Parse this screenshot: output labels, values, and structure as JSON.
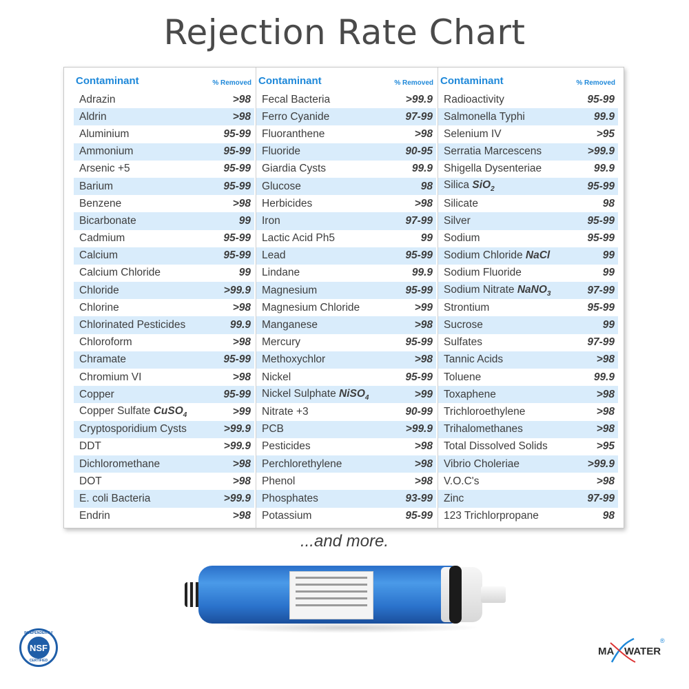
{
  "title": "Rejection Rate Chart",
  "header": {
    "contaminant": "Contaminant",
    "removed": "% Removed"
  },
  "columns": [
    [
      {
        "name": "Adrazin",
        "value": ">98"
      },
      {
        "name": "Aldrin",
        "value": ">98"
      },
      {
        "name": "Aluminium",
        "value": "95-99"
      },
      {
        "name": "Ammonium",
        "value": "95-99"
      },
      {
        "name": "Arsenic +5",
        "value": "95-99"
      },
      {
        "name": "Barium",
        "value": "95-99"
      },
      {
        "name": "Benzene",
        "value": ">98"
      },
      {
        "name": "Bicarbonate",
        "value": "99"
      },
      {
        "name": "Cadmium",
        "value": "95-99"
      },
      {
        "name": "Calcium",
        "value": "95-99"
      },
      {
        "name": "Calcium Chloride",
        "value": "99"
      },
      {
        "name": "Chloride",
        "value": ">99.9"
      },
      {
        "name": "Chlorine",
        "value": ">98"
      },
      {
        "name": "Chlorinated Pesticides",
        "value": "99.9"
      },
      {
        "name": "Chloroform",
        "value": ">98"
      },
      {
        "name": "Chramate",
        "value": "95-99"
      },
      {
        "name": "Chromium VI",
        "value": ">98"
      },
      {
        "name": "Copper",
        "value": "95-99"
      },
      {
        "name": "Copper Sulfate",
        "formula": "CuSO",
        "sub": "4",
        "value": ">99"
      },
      {
        "name": "Cryptosporidium Cysts",
        "value": ">99.9"
      },
      {
        "name": "DDT",
        "value": ">99.9"
      },
      {
        "name": "Dichloromethane",
        "value": ">98"
      },
      {
        "name": "DOT",
        "value": ">98"
      },
      {
        "name": "E. coli Bacteria",
        "value": ">99.9"
      },
      {
        "name": "Endrin",
        "value": ">98"
      }
    ],
    [
      {
        "name": "Fecal Bacteria",
        "value": ">99.9"
      },
      {
        "name": "Ferro Cyanide",
        "value": "97-99"
      },
      {
        "name": "Fluoranthene",
        "value": ">98"
      },
      {
        "name": "Fluoride",
        "value": "90-95"
      },
      {
        "name": "Giardia Cysts",
        "value": "99.9"
      },
      {
        "name": "Glucose",
        "value": "98"
      },
      {
        "name": "Herbicides",
        "value": ">98"
      },
      {
        "name": "Iron",
        "value": "97-99"
      },
      {
        "name": "Lactic Acid Ph5",
        "value": "99"
      },
      {
        "name": "Lead",
        "value": "95-99"
      },
      {
        "name": "Lindane",
        "value": "99.9"
      },
      {
        "name": "Magnesium",
        "value": "95-99"
      },
      {
        "name": "Magnesium Chloride",
        "value": ">99"
      },
      {
        "name": "Manganese",
        "value": ">98"
      },
      {
        "name": "Mercury",
        "value": "95-99"
      },
      {
        "name": "Methoxychlor",
        "value": ">98"
      },
      {
        "name": "Nickel",
        "value": "95-99"
      },
      {
        "name": "Nickel Sulphate",
        "formula": "NiSO",
        "sub": "4",
        "value": ">99"
      },
      {
        "name": "Nitrate +3",
        "value": "90-99"
      },
      {
        "name": "PCB",
        "value": ">99.9"
      },
      {
        "name": "Pesticides",
        "value": ">98"
      },
      {
        "name": "Perchlorethylene",
        "value": ">98"
      },
      {
        "name": "Phenol",
        "value": ">98"
      },
      {
        "name": "Phosphates",
        "value": "93-99"
      },
      {
        "name": "Potassium",
        "value": "95-99"
      }
    ],
    [
      {
        "name": "Radioactivity",
        "value": "95-99"
      },
      {
        "name": "Salmonella Typhi",
        "value": "99.9"
      },
      {
        "name": "Selenium IV",
        "value": ">95"
      },
      {
        "name": "Serratia Marcescens",
        "value": ">99.9"
      },
      {
        "name": "Shigella Dysenteriae",
        "value": "99.9"
      },
      {
        "name": "Silica",
        "formula": "SiO",
        "sub": "2",
        "value": "95-99"
      },
      {
        "name": "Silicate",
        "value": "98"
      },
      {
        "name": "Silver",
        "value": "95-99"
      },
      {
        "name": "Sodium",
        "value": "95-99"
      },
      {
        "name": "Sodium Chloride",
        "formula": "NaCl",
        "sub": "",
        "value": "99"
      },
      {
        "name": "Sodium Fluoride",
        "value": "99"
      },
      {
        "name": "Sodium Nitrate",
        "formula": "NaNO",
        "sub": "3",
        "value": "97-99"
      },
      {
        "name": "Strontium",
        "value": "95-99"
      },
      {
        "name": "Sucrose",
        "value": "99"
      },
      {
        "name": "Sulfates",
        "value": "97-99"
      },
      {
        "name": "Tannic Acids",
        "value": ">98"
      },
      {
        "name": "Toluene",
        "value": "99.9"
      },
      {
        "name": "Toxaphene",
        "value": ">98"
      },
      {
        "name": "Trichloroethylene",
        "value": ">98"
      },
      {
        "name": "Trihalomethanes",
        "value": ">98"
      },
      {
        "name": "Total Dissolved Solids",
        "value": ">95"
      },
      {
        "name": "Vibrio Choleriae",
        "value": ">99.9"
      },
      {
        "name": "V.O.C's",
        "value": ">98"
      },
      {
        "name": "Zinc",
        "value": "97-99"
      },
      {
        "name": "123 Trichlorpropane",
        "value": "98"
      }
    ]
  ],
  "footer_text": "...and more.",
  "nsf_badge": {
    "center": "NSF",
    "top": "INDEPENDENTLY",
    "bottom": "CERTIFIED"
  },
  "brand_logo": {
    "left": "MA",
    "right": "WATER",
    "mark": "®"
  },
  "colors": {
    "header_blue": "#1e88d9",
    "stripe": "#d9ecfb",
    "membrane_blue": "#2b73cc"
  }
}
